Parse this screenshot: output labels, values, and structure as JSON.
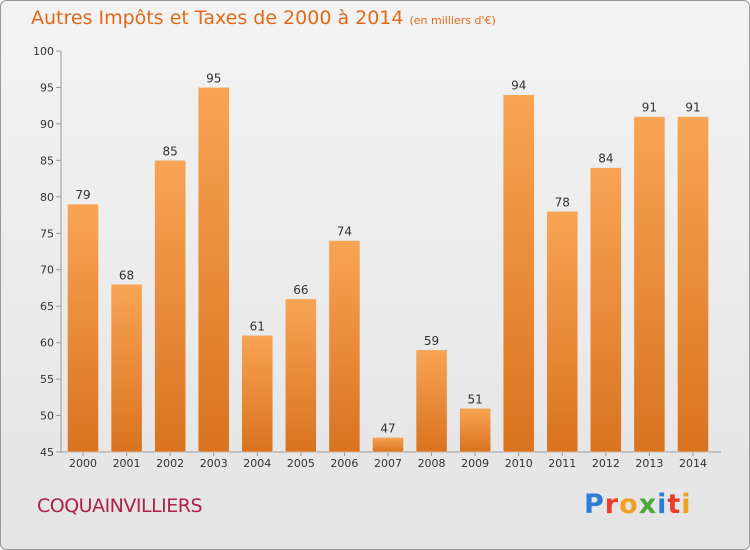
{
  "header": {
    "title": "Autres Impôts et Taxes de 2000 à 2014",
    "subtitle": "(en milliers d'€)"
  },
  "footer": {
    "commune": "COQUAINVILLIERS",
    "logo": "Proxiti",
    "logo_colors": [
      "#2a7fd4",
      "#e8402a",
      "#f0a020",
      "#4aa83a",
      "#2a7fd4",
      "#e8402a",
      "#f0a020"
    ]
  },
  "colors": {
    "bar_light": "#f8a455",
    "bar_dark": "#d9731f",
    "axis": "#999999",
    "grid": "#cccccc",
    "text": "#333333"
  },
  "chart_data": {
    "type": "bar",
    "categories": [
      "2000",
      "2001",
      "2002",
      "2003",
      "2004",
      "2005",
      "2006",
      "2007",
      "2008",
      "2009",
      "2010",
      "2011",
      "2012",
      "2013",
      "2014"
    ],
    "values": [
      79,
      68,
      85,
      95,
      61,
      66,
      74,
      47,
      59,
      51,
      94,
      78,
      84,
      91,
      91
    ],
    "title": "Autres Impôts et Taxes de 2000 à 2014",
    "subtitle": "(en milliers d'€)",
    "ylim": [
      45,
      100
    ],
    "yticks": [
      45,
      50,
      55,
      60,
      65,
      70,
      75,
      80,
      85,
      90,
      95,
      100
    ],
    "grid": false,
    "data_labels": true
  }
}
